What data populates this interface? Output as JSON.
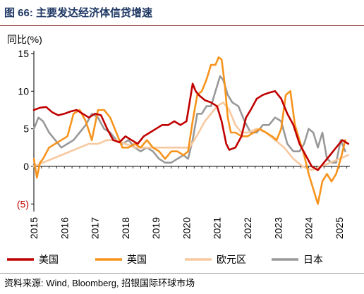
{
  "header": {
    "figure_label": "图 66:",
    "title": "主要发达经济体信贷增速"
  },
  "source": "资料来源: Wind, Bloomberg, 招银国际环球市场",
  "colors": {
    "us": "#c00000",
    "uk": "#f7941d",
    "eu": "#f7c9a0",
    "jp": "#999999",
    "negative_tick": "#c00000"
  },
  "chart_data": {
    "type": "line",
    "title": "主要发达经济体信贷增速",
    "ylabel": "同比(%)",
    "xlabel": "",
    "ylim": [
      -6,
      15
    ],
    "xlim": [
      2015.0,
      2025.35
    ],
    "yticks": [
      {
        "value": 15,
        "label": "15"
      },
      {
        "value": 10,
        "label": "10"
      },
      {
        "value": 5,
        "label": "5"
      },
      {
        "value": 0,
        "label": "0"
      },
      {
        "value": -5,
        "label": "(5)"
      }
    ],
    "xticks": [
      "2015",
      "2016",
      "2017",
      "2018",
      "2019",
      "2020",
      "2021",
      "2022",
      "2023",
      "2024",
      "2025"
    ],
    "grid": false,
    "legend_position": "bottom",
    "series": [
      {
        "name": "美国",
        "color_key": "us",
        "x": [
          2015.0,
          2015.2,
          2015.4,
          2015.6,
          2015.8,
          2016.0,
          2016.2,
          2016.4,
          2016.6,
          2016.8,
          2017.0,
          2017.2,
          2017.4,
          2017.6,
          2017.8,
          2018.0,
          2018.2,
          2018.4,
          2018.6,
          2018.8,
          2019.0,
          2019.2,
          2019.4,
          2019.6,
          2019.8,
          2020.0,
          2020.1,
          2020.2,
          2020.3,
          2020.4,
          2020.6,
          2020.8,
          2021.0,
          2021.15,
          2021.3,
          2021.4,
          2021.6,
          2021.8,
          2021.95,
          2022.1,
          2022.3,
          2022.5,
          2022.7,
          2022.9,
          2023.1,
          2023.3,
          2023.5,
          2023.7,
          2023.9,
          2024.1,
          2024.3,
          2024.5,
          2024.7,
          2024.9,
          2025.1,
          2025.3
        ],
        "values": [
          7.5,
          7.8,
          7.9,
          7.2,
          6.8,
          7.0,
          7.3,
          7.5,
          7.0,
          6.5,
          7.0,
          6.8,
          5.0,
          3.5,
          3.2,
          4.0,
          3.5,
          3.0,
          4.0,
          4.5,
          5.0,
          5.5,
          5.5,
          6.0,
          5.5,
          6.0,
          8.5,
          11.0,
          10.0,
          9.5,
          8.8,
          8.5,
          8.0,
          6.0,
          3.0,
          2.2,
          2.5,
          4.0,
          6.5,
          7.5,
          9.0,
          9.5,
          9.8,
          10.0,
          9.0,
          7.0,
          5.5,
          3.0,
          1.5,
          0.0,
          -0.5,
          0.5,
          1.5,
          2.5,
          3.5,
          3.0
        ]
      },
      {
        "name": "英国",
        "color_key": "uk",
        "x": [
          2015.0,
          2015.1,
          2015.2,
          2015.3,
          2015.5,
          2015.7,
          2015.9,
          2016.1,
          2016.3,
          2016.5,
          2016.7,
          2016.9,
          2017.1,
          2017.3,
          2017.5,
          2017.7,
          2017.9,
          2018.1,
          2018.3,
          2018.5,
          2018.7,
          2018.9,
          2019.1,
          2019.3,
          2019.5,
          2019.7,
          2019.9,
          2020.05,
          2020.2,
          2020.35,
          2020.5,
          2020.65,
          2020.8,
          2020.95,
          2021.05,
          2021.15,
          2021.25,
          2021.35,
          2021.45,
          2021.6,
          2021.8,
          2022.0,
          2022.2,
          2022.4,
          2022.6,
          2022.8,
          2022.95,
          2023.1,
          2023.25,
          2023.4,
          2023.55,
          2023.7,
          2023.85,
          2024.0,
          2024.15,
          2024.3,
          2024.45,
          2024.6,
          2024.75,
          2024.9,
          2025.05,
          2025.2
        ],
        "values": [
          1.0,
          -1.5,
          0.5,
          1.0,
          2.5,
          3.0,
          3.5,
          4.0,
          7.0,
          7.5,
          6.0,
          3.5,
          7.5,
          7.5,
          6.5,
          4.5,
          2.5,
          2.5,
          3.0,
          2.5,
          3.5,
          2.5,
          2.0,
          1.0,
          2.0,
          2.0,
          1.5,
          2.0,
          6.0,
          9.5,
          10.0,
          11.5,
          13.5,
          13.5,
          14.5,
          14.2,
          11.0,
          6.5,
          4.5,
          4.5,
          4.0,
          4.0,
          4.5,
          5.0,
          4.5,
          4.0,
          3.5,
          5.0,
          9.5,
          10.0,
          5.5,
          3.5,
          1.5,
          -1.0,
          -3.0,
          -5.0,
          -2.0,
          -1.0,
          -2.0,
          -1.0,
          1.0,
          3.5
        ]
      },
      {
        "name": "欧元区",
        "color_key": "eu",
        "x": [
          2015.0,
          2015.3,
          2015.6,
          2015.9,
          2016.2,
          2016.5,
          2016.8,
          2017.1,
          2017.4,
          2017.7,
          2018.0,
          2018.3,
          2018.6,
          2018.9,
          2019.2,
          2019.5,
          2019.8,
          2020.1,
          2020.25,
          2020.4,
          2020.6,
          2020.8,
          2021.0,
          2021.2,
          2021.4,
          2021.6,
          2021.8,
          2022.0,
          2022.3,
          2022.6,
          2022.9,
          2023.2,
          2023.5,
          2023.8,
          2024.1,
          2024.4,
          2024.7,
          2025.0,
          2025.3
        ],
        "values": [
          0.0,
          0.5,
          1.0,
          1.5,
          2.0,
          2.5,
          3.0,
          3.0,
          3.5,
          3.5,
          3.0,
          2.5,
          2.5,
          2.5,
          2.5,
          2.5,
          2.5,
          2.5,
          3.5,
          4.5,
          6.0,
          7.0,
          8.0,
          8.5,
          7.5,
          5.5,
          4.5,
          4.5,
          5.0,
          4.5,
          3.5,
          2.5,
          1.0,
          0.0,
          -0.5,
          0.0,
          0.5,
          1.0,
          1.5
        ]
      },
      {
        "name": "日本",
        "color_key": "jp",
        "x": [
          2015.0,
          2015.15,
          2015.3,
          2015.5,
          2015.7,
          2015.9,
          2016.1,
          2016.3,
          2016.5,
          2016.7,
          2016.9,
          2017.1,
          2017.3,
          2017.5,
          2017.7,
          2017.9,
          2018.1,
          2018.3,
          2018.5,
          2018.7,
          2018.9,
          2019.1,
          2019.3,
          2019.5,
          2019.7,
          2019.9,
          2020.05,
          2020.2,
          2020.35,
          2020.5,
          2020.65,
          2020.8,
          2020.95,
          2021.1,
          2021.2,
          2021.35,
          2021.5,
          2021.7,
          2021.9,
          2022.1,
          2022.3,
          2022.5,
          2022.7,
          2022.9,
          2023.1,
          2023.3,
          2023.5,
          2023.7,
          2023.85,
          2024.0,
          2024.15,
          2024.3,
          2024.45,
          2024.6,
          2024.75,
          2024.9,
          2025.05,
          2025.2
        ],
        "values": [
          5.0,
          6.5,
          6.0,
          4.5,
          3.5,
          2.5,
          3.0,
          3.5,
          4.5,
          5.5,
          7.0,
          6.5,
          5.0,
          4.5,
          3.5,
          3.0,
          3.5,
          2.5,
          2.0,
          2.5,
          2.0,
          1.0,
          0.5,
          0.5,
          1.0,
          1.5,
          1.0,
          3.5,
          7.0,
          7.0,
          8.0,
          8.0,
          10.0,
          12.0,
          11.5,
          9.5,
          8.5,
          8.0,
          6.0,
          4.5,
          4.5,
          5.5,
          5.5,
          6.5,
          6.0,
          3.0,
          2.0,
          2.0,
          3.0,
          5.0,
          4.5,
          2.5,
          4.5,
          1.0,
          0.5,
          0.5,
          3.5,
          2.0
        ]
      }
    ]
  }
}
